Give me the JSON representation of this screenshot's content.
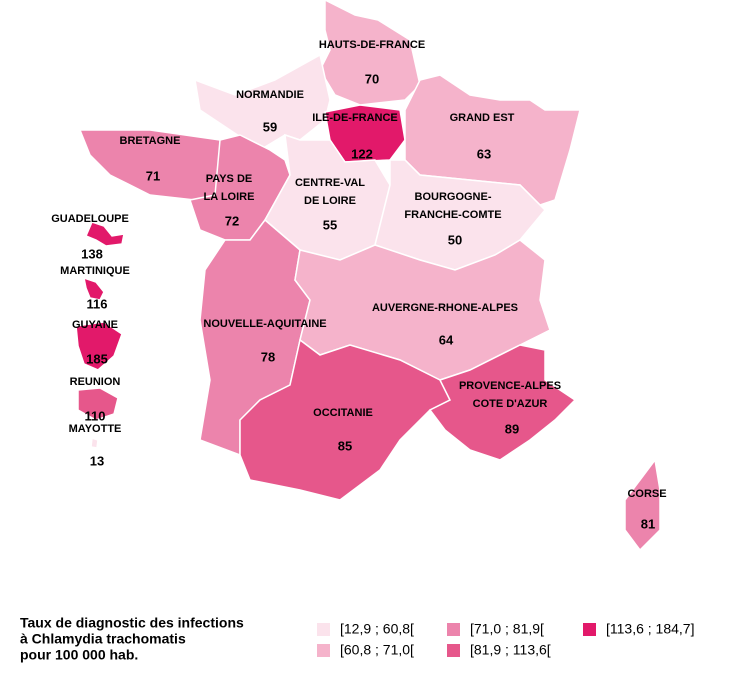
{
  "map": {
    "regions": [
      {
        "name": [
          "HAUTS-DE-FRANCE"
        ],
        "value": 70,
        "color": "#f5b3cb"
      },
      {
        "name": [
          "NORMANDIE"
        ],
        "value": 59,
        "color": "#fbe3ec"
      },
      {
        "name": [
          "ILE-DE-FRANCE"
        ],
        "value": 122,
        "color": "#e2196a"
      },
      {
        "name": [
          "GRAND EST"
        ],
        "value": 63,
        "color": "#f5b3cb"
      },
      {
        "name": [
          "BRETAGNE"
        ],
        "value": 71,
        "color": "#ec84ac"
      },
      {
        "name": [
          "PAYS DE",
          "LA LOIRE"
        ],
        "value": 72,
        "color": "#ec84ac"
      },
      {
        "name": [
          "CENTRE-VAL",
          "DE LOIRE"
        ],
        "value": 55,
        "color": "#fbe3ec"
      },
      {
        "name": [
          "BOURGOGNE-",
          "FRANCHE-COMTE"
        ],
        "value": 50,
        "color": "#fbe3ec"
      },
      {
        "name": [
          "NOUVELLE-AQUITAINE"
        ],
        "value": 78,
        "color": "#ec84ac"
      },
      {
        "name": [
          "AUVERGNE-RHONE-ALPES"
        ],
        "value": 64,
        "color": "#f5b3cb"
      },
      {
        "name": [
          "OCCITANIE"
        ],
        "value": 85,
        "color": "#e6578b"
      },
      {
        "name": [
          "PROVENCE-ALPES",
          "COTE D'AZUR"
        ],
        "value": 89,
        "color": "#e6578b"
      },
      {
        "name": [
          "CORSE"
        ],
        "value": 81,
        "color": "#ec84ac"
      },
      {
        "name": [
          "GUADELOUPE"
        ],
        "value": 138,
        "color": "#e2196a"
      },
      {
        "name": [
          "MARTINIQUE"
        ],
        "value": 116,
        "color": "#e2196a"
      },
      {
        "name": [
          "GUYANE"
        ],
        "value": 185,
        "color": "#e2196a"
      },
      {
        "name": [
          "REUNION"
        ],
        "value": 110,
        "color": "#e6578b"
      },
      {
        "name": [
          "MAYOTTE"
        ],
        "value": 13,
        "color": "#fbe3ec"
      }
    ],
    "legend": {
      "title": [
        "Taux de diagnostic des infections",
        "à Chlamydia trachomatis",
        "pour 100 000 hab."
      ],
      "items": [
        {
          "label": "[12,9 ; 60,8[",
          "color": "#fbe3ec"
        },
        {
          "label": "[60,8 ; 71,0[",
          "color": "#f5b3cb"
        },
        {
          "label": "[71,0 ; 81,9[",
          "color": "#ec84ac"
        },
        {
          "label": "[81,9 ; 113,6[",
          "color": "#e6578b"
        },
        {
          "label": "[113,6 ; 184,7]",
          "color": "#e2196a"
        }
      ]
    }
  }
}
